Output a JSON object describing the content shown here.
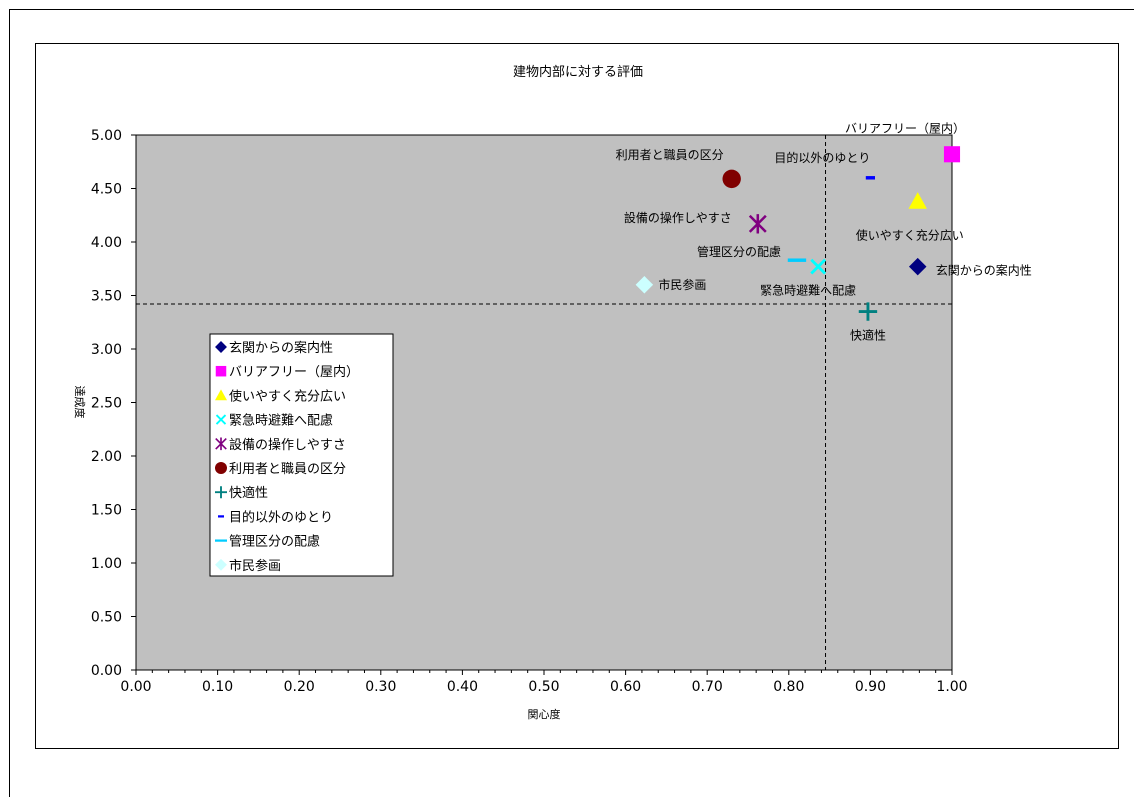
{
  "chart_data": {
    "type": "scatter",
    "title": "建物内部に対する評価",
    "xlabel": "関心度",
    "ylabel": "達成度",
    "xlim": [
      0,
      1
    ],
    "ylim": [
      0,
      5
    ],
    "xticks": [
      "0.00",
      "0.10",
      "0.20",
      "0.30",
      "0.40",
      "0.50",
      "0.60",
      "0.70",
      "0.80",
      "0.90",
      "1.00"
    ],
    "yticks": [
      "0.00",
      "0.50",
      "1.00",
      "1.50",
      "2.00",
      "2.50",
      "3.00",
      "3.50",
      "4.00",
      "4.50",
      "5.00"
    ],
    "plot_background": "#c0c0c0",
    "grid": false,
    "reference_lines": {
      "x": 0.845,
      "y": 3.42,
      "style": "dashed"
    },
    "legend_position": "left-middle",
    "series": [
      {
        "name": "玄関からの案内性",
        "x": 0.958,
        "y": 3.77,
        "marker": "diamond",
        "color": "#000080"
      },
      {
        "name": "バリアフリー（屋内）",
        "x": 1.0,
        "y": 4.82,
        "marker": "square",
        "color": "#ff00ff"
      },
      {
        "name": "使いやすく充分広い",
        "x": 0.958,
        "y": 4.38,
        "marker": "triangle",
        "color": "#ffff00"
      },
      {
        "name": "緊急時避難へ配慮",
        "x": 0.836,
        "y": 3.77,
        "marker": "x",
        "color": "#00ffff"
      },
      {
        "name": "設備の操作しやすさ",
        "x": 0.762,
        "y": 4.17,
        "marker": "star",
        "color": "#800080"
      },
      {
        "name": "利用者と職員の区分",
        "x": 0.73,
        "y": 4.59,
        "marker": "circle",
        "color": "#800000"
      },
      {
        "name": "快適性",
        "x": 0.897,
        "y": 3.35,
        "marker": "plus",
        "color": "#008080"
      },
      {
        "name": "目的以外のゆとり",
        "x": 0.9,
        "y": 4.6,
        "marker": "dash",
        "color": "#0000ff"
      },
      {
        "name": "管理区分の配慮",
        "x": 0.81,
        "y": 3.83,
        "marker": "longdash",
        "color": "#00ccff"
      },
      {
        "name": "市民参画",
        "x": 0.623,
        "y": 3.6,
        "marker": "diamond",
        "color": "#ccffff"
      }
    ]
  }
}
